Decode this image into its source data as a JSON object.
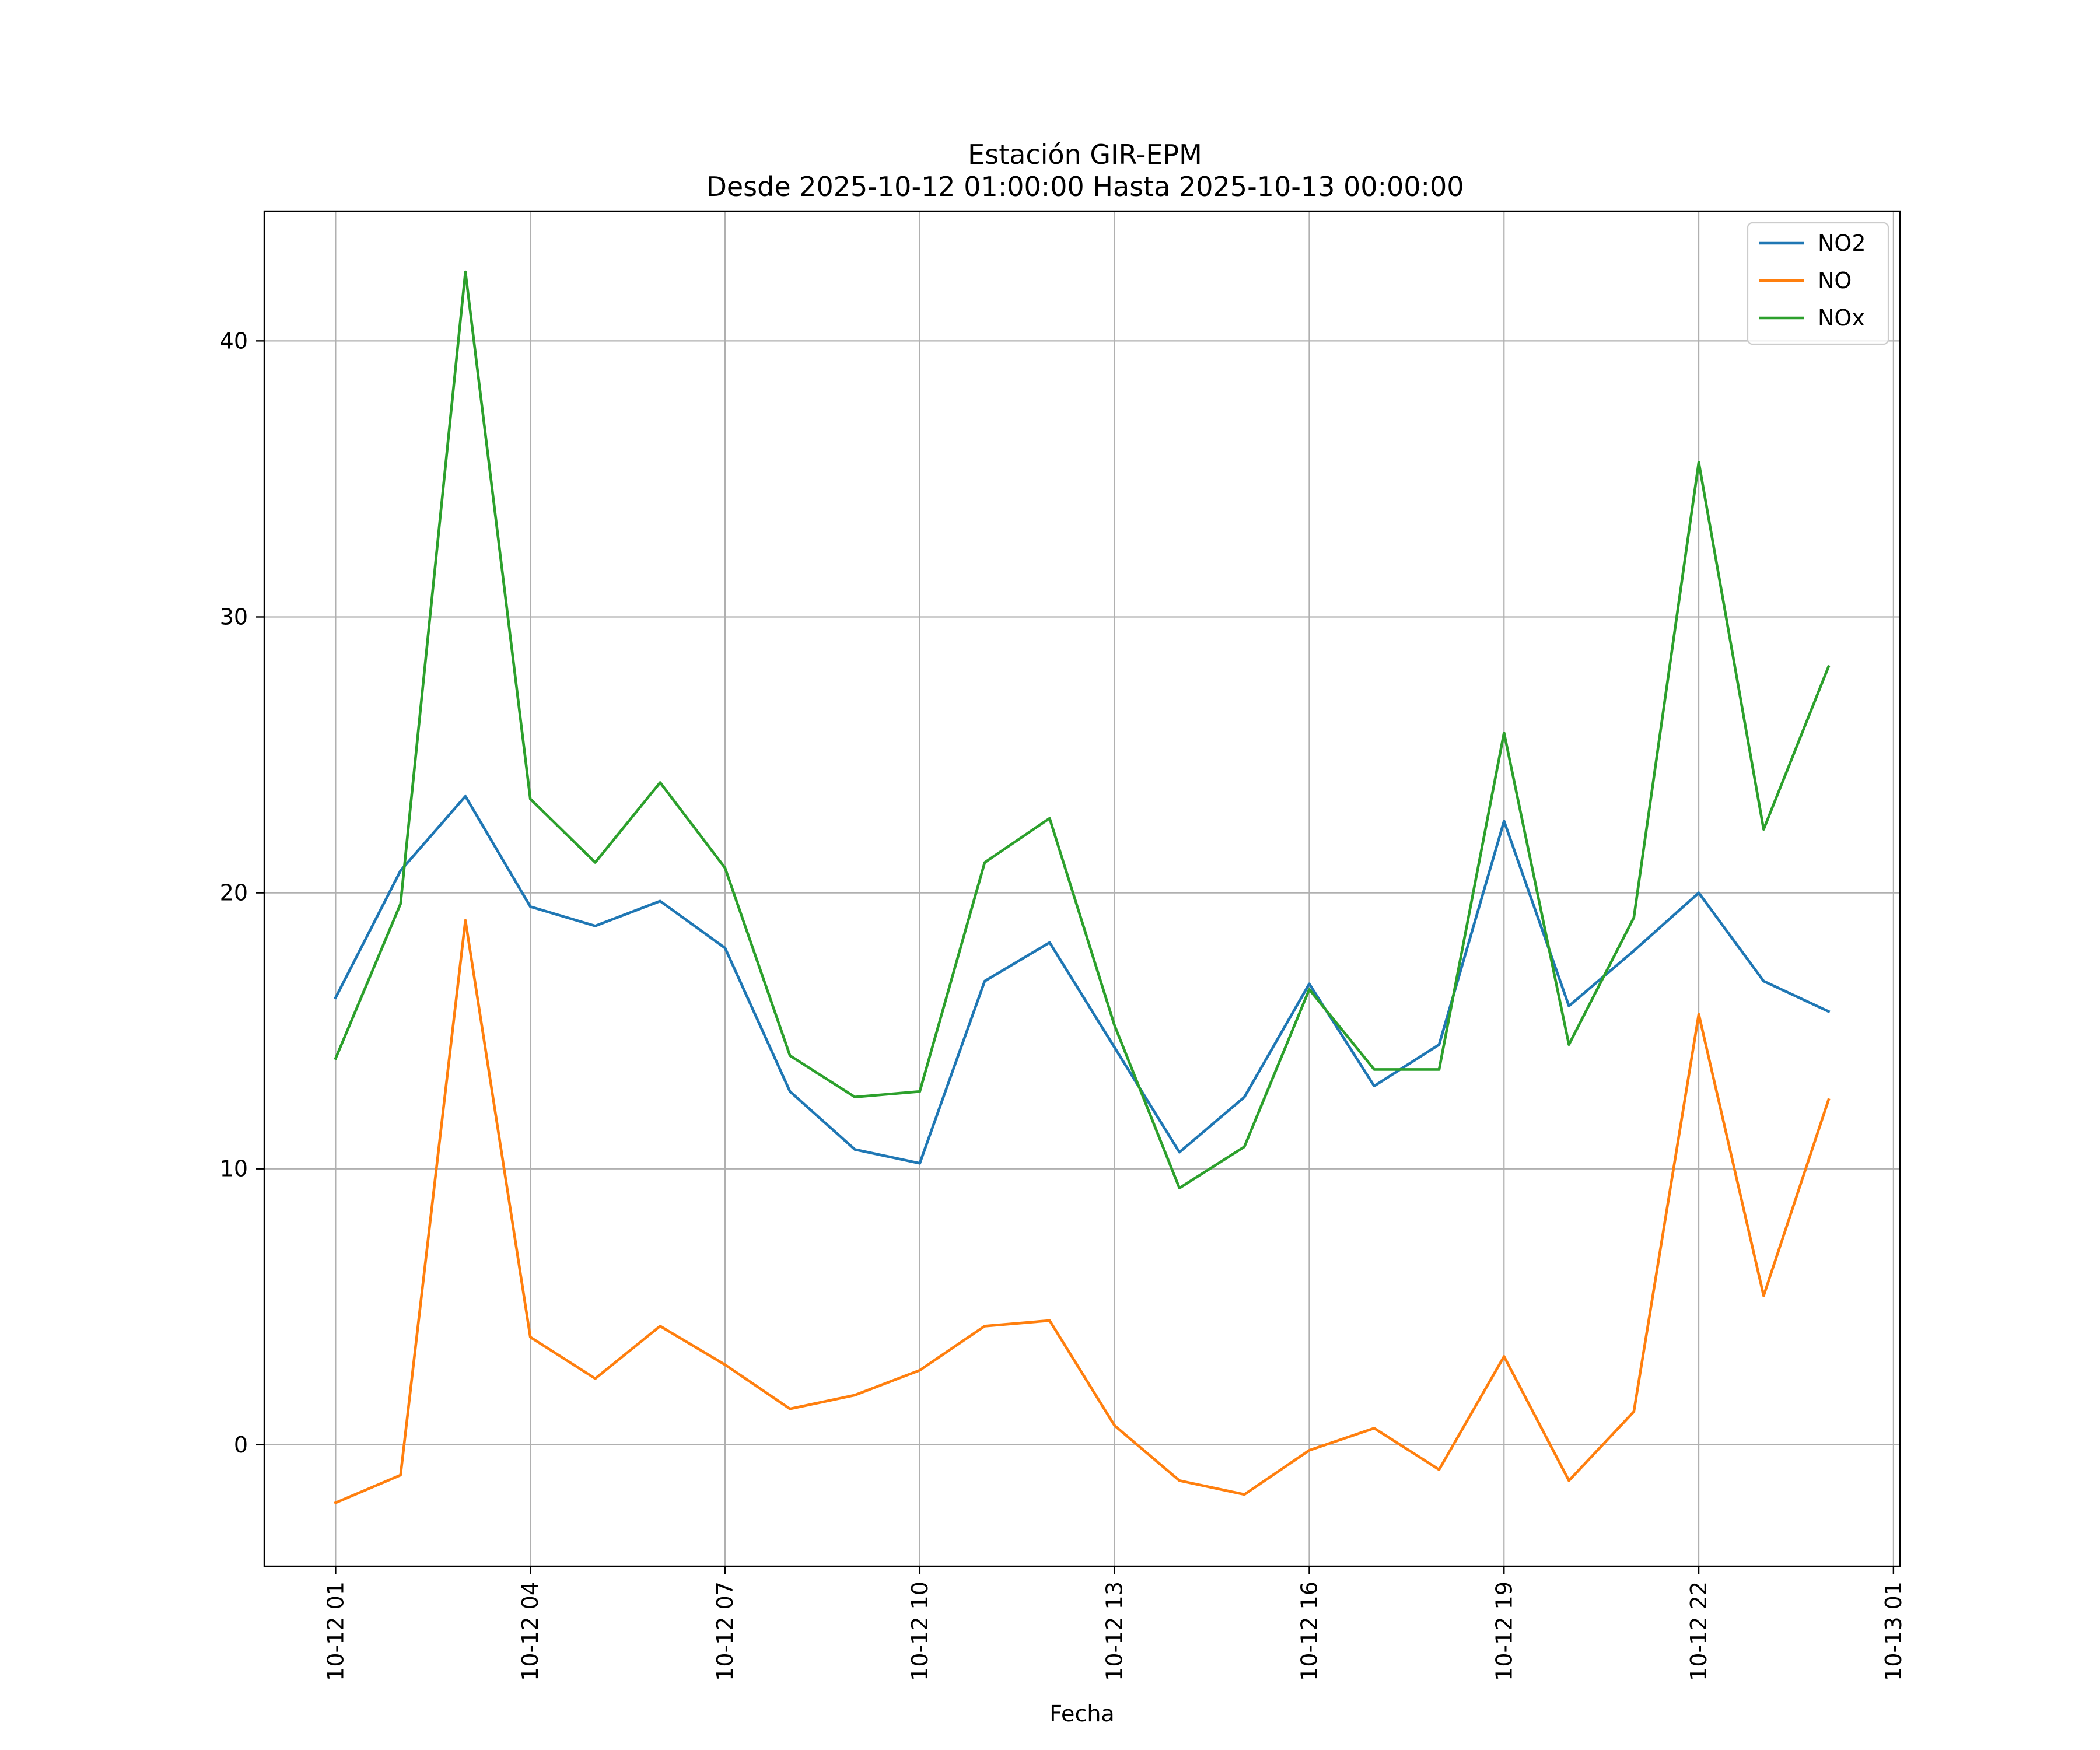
{
  "chart_data": {
    "type": "line",
    "title": "Estación GIR-EPM",
    "subtitle": "Desde 2025-10-12 01:00:00 Hasta 2025-10-13 00:00:00",
    "xlabel": "Fecha",
    "ylabel": "",
    "x_hours": [
      1,
      2,
      3,
      4,
      5,
      6,
      7,
      8,
      9,
      10,
      11,
      12,
      13,
      14,
      15,
      16,
      17,
      18,
      19,
      20,
      21,
      22,
      23,
      24
    ],
    "xlim": [
      -0.1,
      25.1
    ],
    "ylim": [
      -4.4,
      44.7
    ],
    "x_ticks": [
      {
        "hour": 1,
        "label": "10-12 01"
      },
      {
        "hour": 4,
        "label": "10-12 04"
      },
      {
        "hour": 7,
        "label": "10-12 07"
      },
      {
        "hour": 10,
        "label": "10-12 10"
      },
      {
        "hour": 13,
        "label": "10-12 13"
      },
      {
        "hour": 16,
        "label": "10-12 16"
      },
      {
        "hour": 19,
        "label": "10-12 19"
      },
      {
        "hour": 22,
        "label": "10-12 22"
      },
      {
        "hour": 25,
        "label": "10-13 01"
      }
    ],
    "y_ticks": [
      {
        "value": 0,
        "label": "0"
      },
      {
        "value": 10,
        "label": "10"
      },
      {
        "value": 20,
        "label": "20"
      },
      {
        "value": 30,
        "label": "30"
      },
      {
        "value": 40,
        "label": "40"
      }
    ],
    "grid": true,
    "legend_position": "top-right",
    "series": [
      {
        "name": "NO2",
        "color": "#1f77b4",
        "values": [
          16.2,
          20.8,
          23.5,
          19.5,
          18.8,
          19.7,
          18.0,
          12.8,
          10.7,
          10.2,
          16.8,
          18.2,
          14.4,
          10.6,
          12.6,
          16.7,
          13.0,
          14.5,
          22.6,
          15.9,
          17.9,
          20.0,
          16.8,
          15.7
        ]
      },
      {
        "name": "NO",
        "color": "#ff7f0e",
        "values": [
          -2.1,
          -1.1,
          19.0,
          3.9,
          2.4,
          4.3,
          2.9,
          1.3,
          1.8,
          2.7,
          4.3,
          4.5,
          0.7,
          -1.3,
          -1.8,
          -0.2,
          0.6,
          -0.9,
          3.2,
          -1.3,
          1.2,
          15.6,
          5.4,
          12.5
        ]
      },
      {
        "name": "NOx",
        "color": "#2ca02c",
        "values": [
          14.0,
          19.6,
          42.5,
          23.4,
          21.1,
          24.0,
          20.9,
          14.1,
          12.6,
          12.8,
          21.1,
          22.7,
          15.2,
          9.3,
          10.8,
          16.5,
          13.6,
          13.6,
          25.8,
          14.5,
          19.1,
          35.6,
          22.3,
          28.2
        ]
      }
    ]
  }
}
